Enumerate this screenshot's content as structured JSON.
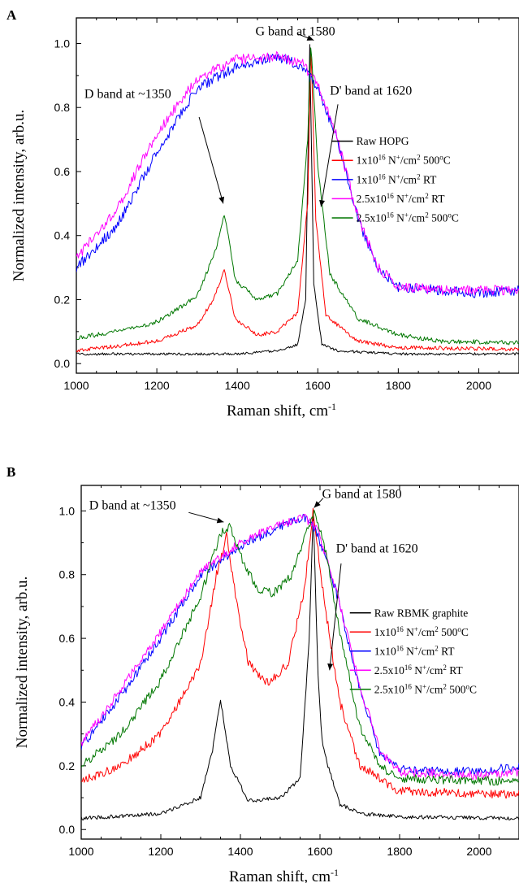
{
  "chart_data": [
    {
      "type": "line",
      "panel": "A",
      "xlabel": "Raman shift, cm",
      "xlabel_sup": "-1",
      "ylabel": "Normalized intensity, arb.u.",
      "xlim": [
        1000,
        2100
      ],
      "ylim": [
        -0.03,
        1.08
      ],
      "xticks": [
        "1000",
        "1200",
        "1400",
        "1600",
        "1800",
        "2000"
      ],
      "yticks": [
        "0.0",
        "0.2",
        "0.4",
        "0.6",
        "0.8",
        "1.0"
      ],
      "legend_position": "right",
      "annotations": [
        {
          "text": "D band at ~1350",
          "x": 1020,
          "y": 0.83
        },
        {
          "text": "G band at 1580",
          "x": 1445,
          "y": 1.025
        },
        {
          "text": "D' band at 1620",
          "x": 1630,
          "y": 0.84
        }
      ],
      "series": [
        {
          "name": "Raw HOPG",
          "legend_parts": [
            [
              "Raw HOPG",
              ""
            ]
          ],
          "color": "#000000",
          "noise": 0.004,
          "points": [
            [
              1000,
              0.03
            ],
            [
              1200,
              0.03
            ],
            [
              1400,
              0.03
            ],
            [
              1500,
              0.04
            ],
            [
              1550,
              0.06
            ],
            [
              1570,
              0.2
            ],
            [
              1580,
              1.0
            ],
            [
              1590,
              0.25
            ],
            [
              1610,
              0.06
            ],
            [
              1650,
              0.04
            ],
            [
              1800,
              0.03
            ],
            [
              2100,
              0.03
            ]
          ]
        },
        {
          "name": "1x10^16 N+/cm2 500oC",
          "legend_parts": [
            [
              "1x10",
              ""
            ],
            [
              "16",
              "sup"
            ],
            [
              " N",
              ""
            ],
            [
              "+",
              "sup"
            ],
            [
              "/cm",
              ""
            ],
            [
              "2",
              "sup"
            ],
            [
              " 500",
              ""
            ],
            [
              "o",
              "sup"
            ],
            [
              "C",
              ""
            ]
          ],
          "color": "#ff0000",
          "noise": 0.006,
          "points": [
            [
              1000,
              0.04
            ],
            [
              1200,
              0.07
            ],
            [
              1300,
              0.12
            ],
            [
              1340,
              0.2
            ],
            [
              1368,
              0.29
            ],
            [
              1395,
              0.14
            ],
            [
              1450,
              0.09
            ],
            [
              1500,
              0.1
            ],
            [
              1550,
              0.16
            ],
            [
              1575,
              0.5
            ],
            [
              1583,
              1.0
            ],
            [
              1595,
              0.45
            ],
            [
              1620,
              0.15
            ],
            [
              1700,
              0.07
            ],
            [
              1800,
              0.05
            ],
            [
              2100,
              0.045
            ]
          ]
        },
        {
          "name": "1x10^16 N+/cm2 RT",
          "legend_parts": [
            [
              "1x10",
              ""
            ],
            [
              "16",
              "sup"
            ],
            [
              " N",
              ""
            ],
            [
              "+",
              "sup"
            ],
            [
              "/cm",
              ""
            ],
            [
              "2",
              "sup"
            ],
            [
              " RT",
              ""
            ]
          ],
          "color": "#0000ff",
          "noise": 0.016,
          "points": [
            [
              1000,
              0.3
            ],
            [
              1100,
              0.43
            ],
            [
              1200,
              0.66
            ],
            [
              1300,
              0.86
            ],
            [
              1400,
              0.93
            ],
            [
              1500,
              0.96
            ],
            [
              1560,
              0.93
            ],
            [
              1600,
              0.86
            ],
            [
              1650,
              0.69
            ],
            [
              1700,
              0.45
            ],
            [
              1750,
              0.3
            ],
            [
              1800,
              0.24
            ],
            [
              1900,
              0.23
            ],
            [
              2000,
              0.22
            ],
            [
              2100,
              0.23
            ]
          ]
        },
        {
          "name": "2.5x10^16 N+/cm2 RT",
          "legend_parts": [
            [
              "2.5x10",
              ""
            ],
            [
              "16",
              "sup"
            ],
            [
              " N",
              ""
            ],
            [
              "+",
              "sup"
            ],
            [
              "/cm",
              ""
            ],
            [
              "2",
              "sup"
            ],
            [
              " RT",
              ""
            ]
          ],
          "color": "#ff00ff",
          "noise": 0.016,
          "points": [
            [
              1000,
              0.33
            ],
            [
              1100,
              0.48
            ],
            [
              1200,
              0.72
            ],
            [
              1300,
              0.89
            ],
            [
              1400,
              0.95
            ],
            [
              1500,
              0.96
            ],
            [
              1560,
              0.94
            ],
            [
              1600,
              0.87
            ],
            [
              1650,
              0.7
            ],
            [
              1700,
              0.46
            ],
            [
              1750,
              0.3
            ],
            [
              1800,
              0.24
            ],
            [
              1900,
              0.23
            ],
            [
              2000,
              0.23
            ],
            [
              2100,
              0.23
            ]
          ]
        },
        {
          "name": "2.5x10^16 N+/cm2 500oC",
          "legend_parts": [
            [
              "2.5x10",
              ""
            ],
            [
              "16",
              "sup"
            ],
            [
              " N",
              ""
            ],
            [
              "+",
              "sup"
            ],
            [
              "/cm",
              ""
            ],
            [
              "2",
              "sup"
            ],
            [
              " 500",
              ""
            ],
            [
              "o",
              "sup"
            ],
            [
              "C",
              ""
            ]
          ],
          "color": "#007700",
          "noise": 0.007,
          "points": [
            [
              1000,
              0.08
            ],
            [
              1100,
              0.1
            ],
            [
              1200,
              0.13
            ],
            [
              1300,
              0.21
            ],
            [
              1345,
              0.35
            ],
            [
              1368,
              0.47
            ],
            [
              1395,
              0.26
            ],
            [
              1450,
              0.2
            ],
            [
              1500,
              0.22
            ],
            [
              1550,
              0.32
            ],
            [
              1575,
              0.7
            ],
            [
              1583,
              1.0
            ],
            [
              1600,
              0.62
            ],
            [
              1630,
              0.28
            ],
            [
              1700,
              0.14
            ],
            [
              1800,
              0.09
            ],
            [
              1900,
              0.07
            ],
            [
              2100,
              0.065
            ]
          ]
        }
      ]
    },
    {
      "type": "line",
      "panel": "B",
      "xlabel": "Raman shift, cm",
      "xlabel_sup": "-1",
      "ylabel": "Normalized intensity, arb.u.",
      "xlim": [
        1000,
        2100
      ],
      "ylim": [
        -0.03,
        1.08
      ],
      "xticks": [
        "1000",
        "1200",
        "1400",
        "1600",
        "1800",
        "2000"
      ],
      "yticks": [
        "0.0",
        "0.2",
        "0.4",
        "0.6",
        "0.8",
        "1.0"
      ],
      "legend_position": "right",
      "annotations": [
        {
          "text": "D band at ~1350",
          "x": 1020,
          "y": 1.005
        },
        {
          "text": "G band at 1580",
          "x": 1605,
          "y": 1.04
        },
        {
          "text": "D' band at 1620",
          "x": 1640,
          "y": 0.87
        }
      ],
      "series": [
        {
          "name": "Raw RBMK graphite",
          "legend_parts": [
            [
              "Raw RBMK graphite",
              ""
            ]
          ],
          "color": "#000000",
          "noise": 0.006,
          "points": [
            [
              1000,
              0.035
            ],
            [
              1200,
              0.05
            ],
            [
              1300,
              0.1
            ],
            [
              1330,
              0.25
            ],
            [
              1350,
              0.41
            ],
            [
              1375,
              0.2
            ],
            [
              1420,
              0.09
            ],
            [
              1500,
              0.1
            ],
            [
              1550,
              0.16
            ],
            [
              1573,
              0.6
            ],
            [
              1583,
              1.0
            ],
            [
              1595,
              0.48
            ],
            [
              1605,
              0.28
            ],
            [
              1620,
              0.2
            ],
            [
              1650,
              0.08
            ],
            [
              1700,
              0.05
            ],
            [
              1800,
              0.04
            ],
            [
              2100,
              0.035
            ]
          ]
        },
        {
          "name": "1x10^16 N+/cm2 500oC",
          "legend_parts": [
            [
              "1x10",
              ""
            ],
            [
              "16",
              "sup"
            ],
            [
              " N",
              ""
            ],
            [
              "+",
              "sup"
            ],
            [
              "/cm",
              ""
            ],
            [
              "2",
              "sup"
            ],
            [
              " 500",
              ""
            ],
            [
              "o",
              "sup"
            ],
            [
              "C",
              ""
            ]
          ],
          "color": "#ff0000",
          "noise": 0.014,
          "points": [
            [
              1000,
              0.15
            ],
            [
              1100,
              0.2
            ],
            [
              1200,
              0.3
            ],
            [
              1300,
              0.52
            ],
            [
              1340,
              0.8
            ],
            [
              1365,
              0.92
            ],
            [
              1390,
              0.72
            ],
            [
              1420,
              0.52
            ],
            [
              1470,
              0.46
            ],
            [
              1520,
              0.52
            ],
            [
              1560,
              0.75
            ],
            [
              1583,
              1.0
            ],
            [
              1610,
              0.72
            ],
            [
              1650,
              0.4
            ],
            [
              1700,
              0.2
            ],
            [
              1800,
              0.12
            ],
            [
              2100,
              0.11
            ]
          ]
        },
        {
          "name": "1x10^16 N+/cm2 RT",
          "legend_parts": [
            [
              "1x10",
              ""
            ],
            [
              "16",
              "sup"
            ],
            [
              " N",
              ""
            ],
            [
              "+",
              "sup"
            ],
            [
              "/cm",
              ""
            ],
            [
              "2",
              "sup"
            ],
            [
              " RT",
              ""
            ]
          ],
          "color": "#0000ff",
          "noise": 0.014,
          "points": [
            [
              1000,
              0.26
            ],
            [
              1100,
              0.42
            ],
            [
              1200,
              0.6
            ],
            [
              1300,
              0.8
            ],
            [
              1400,
              0.89
            ],
            [
              1500,
              0.95
            ],
            [
              1560,
              0.98
            ],
            [
              1590,
              0.94
            ],
            [
              1640,
              0.75
            ],
            [
              1700,
              0.44
            ],
            [
              1750,
              0.24
            ],
            [
              1800,
              0.19
            ],
            [
              2000,
              0.18
            ],
            [
              2100,
              0.2
            ]
          ]
        },
        {
          "name": "2.5x10^16 N+/cm2 RT",
          "legend_parts": [
            [
              "2.5x10",
              ""
            ],
            [
              "16",
              "sup"
            ],
            [
              " N",
              ""
            ],
            [
              "+",
              "sup"
            ],
            [
              "/cm",
              ""
            ],
            [
              "2",
              "sup"
            ],
            [
              " RT",
              ""
            ]
          ],
          "color": "#ff00ff",
          "noise": 0.014,
          "points": [
            [
              1000,
              0.27
            ],
            [
              1100,
              0.44
            ],
            [
              1200,
              0.62
            ],
            [
              1300,
              0.81
            ],
            [
              1400,
              0.9
            ],
            [
              1500,
              0.96
            ],
            [
              1560,
              0.98
            ],
            [
              1590,
              0.95
            ],
            [
              1640,
              0.76
            ],
            [
              1700,
              0.45
            ],
            [
              1750,
              0.25
            ],
            [
              1800,
              0.18
            ],
            [
              2000,
              0.17
            ],
            [
              2100,
              0.18
            ]
          ]
        },
        {
          "name": "2.5x10^16 N+/cm2 500oC",
          "legend_parts": [
            [
              "2.5x10",
              ""
            ],
            [
              "16",
              "sup"
            ],
            [
              " N",
              ""
            ],
            [
              "+",
              "sup"
            ],
            [
              "/cm",
              ""
            ],
            [
              "2",
              "sup"
            ],
            [
              " 500",
              ""
            ],
            [
              "o",
              "sup"
            ],
            [
              "C",
              ""
            ]
          ],
          "color": "#007700",
          "noise": 0.014,
          "points": [
            [
              1000,
              0.2
            ],
            [
              1100,
              0.3
            ],
            [
              1200,
              0.47
            ],
            [
              1300,
              0.73
            ],
            [
              1350,
              0.93
            ],
            [
              1375,
              0.95
            ],
            [
              1400,
              0.86
            ],
            [
              1440,
              0.76
            ],
            [
              1480,
              0.74
            ],
            [
              1530,
              0.8
            ],
            [
              1565,
              0.93
            ],
            [
              1585,
              0.99
            ],
            [
              1610,
              0.9
            ],
            [
              1650,
              0.62
            ],
            [
              1700,
              0.32
            ],
            [
              1750,
              0.2
            ],
            [
              1800,
              0.16
            ],
            [
              2100,
              0.15
            ]
          ]
        }
      ]
    }
  ]
}
